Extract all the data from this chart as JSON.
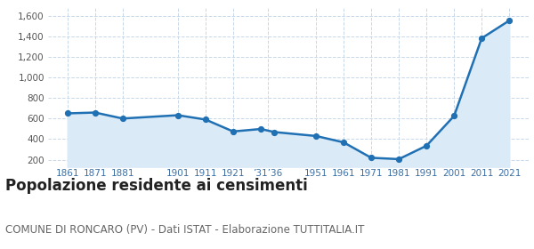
{
  "years": [
    1861,
    1871,
    1881,
    1901,
    1911,
    1921,
    1931,
    1936,
    1951,
    1961,
    1971,
    1981,
    1991,
    2001,
    2011,
    2021
  ],
  "population": [
    650,
    658,
    600,
    632,
    590,
    474,
    498,
    468,
    430,
    368,
    218,
    205,
    335,
    625,
    1381,
    1553
  ],
  "line_color": "#2070b4",
  "marker_color": "#2070b4",
  "fill_color": "#daeaf7",
  "background_color": "#ffffff",
  "grid_color": "#c8d8e8",
  "title": "Popolazione residente ai censimenti",
  "subtitle": "COMUNE DI RONCARO (PV) - Dati ISTAT - Elaborazione TUTTITALIA.IT",
  "title_fontsize": 12,
  "subtitle_fontsize": 8.5,
  "yticks": [
    200,
    400,
    600,
    800,
    1000,
    1200,
    1400,
    1600
  ],
  "ylim": [
    130,
    1680
  ],
  "xlim_left": 1854,
  "xlim_right": 2028
}
